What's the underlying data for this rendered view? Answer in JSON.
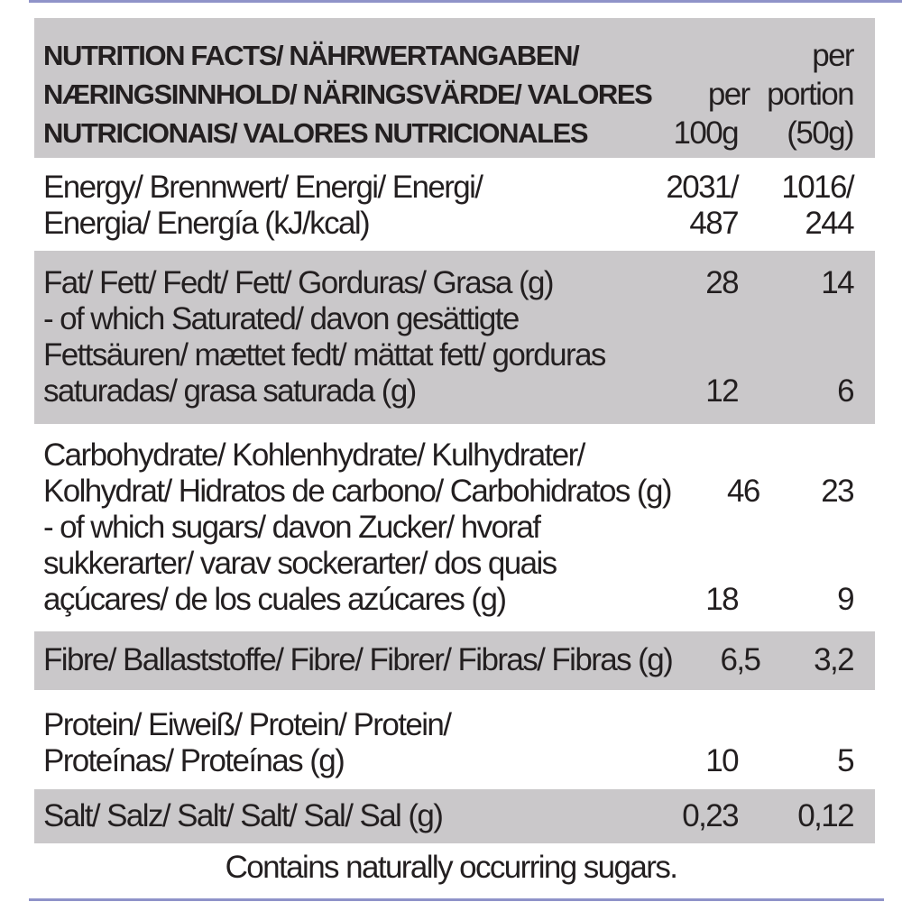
{
  "header": {
    "lines": [
      {
        "text": "NUTRITION FACTS/ NÄHRWERTANGABEN/",
        "per100": "",
        "portion": "per"
      },
      {
        "text": "NÆRINGSINNHOLD/ NÄRINGSVÄRDE/ VALORES",
        "per100": "per",
        "portion": "portion"
      },
      {
        "text": "NUTRICIONAIS/ VALORES NUTRICIONALES",
        "per100": "100g",
        "portion": "(50g)"
      }
    ]
  },
  "rows": [
    {
      "lines": [
        {
          "text": "Energy/ Brennwert/ Energi/ Energi/",
          "per100": "2031/",
          "portion": "1016/"
        },
        {
          "text": "Energia/ Energía (kJ/kcal)",
          "per100": "487",
          "portion": "244"
        }
      ]
    },
    {
      "lines": [
        {
          "text": "Fat/ Fett/ Fedt/ Fett/ Gorduras/ Grasa (g)",
          "per100": "28",
          "portion": "14"
        },
        {
          "text": "- of which Saturated/ davon gesättigte",
          "per100": "",
          "portion": ""
        },
        {
          "text": "Fettsäuren/ mættet fedt/ mättat fett/ gorduras",
          "per100": "",
          "portion": ""
        },
        {
          "text": "saturadas/ grasa saturada (g)",
          "per100": "12",
          "portion": "6"
        }
      ]
    },
    {
      "lines": [
        {
          "text": "Carbohydrate/ Kohlenhydrate/ Kulhydrater/",
          "per100": "",
          "portion": ""
        },
        {
          "text": "Kolhydrat/ Hidratos de carbono/ Carbohidratos (g)",
          "per100": "46",
          "portion": "23"
        },
        {
          "text": "- of which sugars/ davon Zucker/ hvoraf",
          "per100": "",
          "portion": ""
        },
        {
          "text": "sukkerarter/ varav sockerarter/ dos quais",
          "per100": "",
          "portion": ""
        },
        {
          "text": "açúcares/ de los cuales azúcares (g)",
          "per100": "18",
          "portion": "9"
        }
      ]
    },
    {
      "lines": [
        {
          "text": "Fibre/ Ballaststoffe/ Fibre/ Fibrer/ Fibras/ Fibras (g)",
          "per100": "6,5",
          "portion": "3,2"
        }
      ]
    },
    {
      "lines": [
        {
          "text": "Protein/ Eiweiß/ Protein/ Protein/",
          "per100": "",
          "portion": ""
        },
        {
          "text": "Proteínas/ Proteínas (g)",
          "per100": "10",
          "portion": "5"
        }
      ]
    },
    {
      "lines": [
        {
          "text": "Salt/ Salz/ Salt/ Salt/ Sal/ Sal (g)",
          "per100": "0,23",
          "portion": "0,12"
        }
      ]
    }
  ],
  "footer": "Contains naturally occurring sugars.",
  "colors": {
    "shade": "#cac8ca",
    "rule": "#8f93c9",
    "text": "#231f20"
  }
}
